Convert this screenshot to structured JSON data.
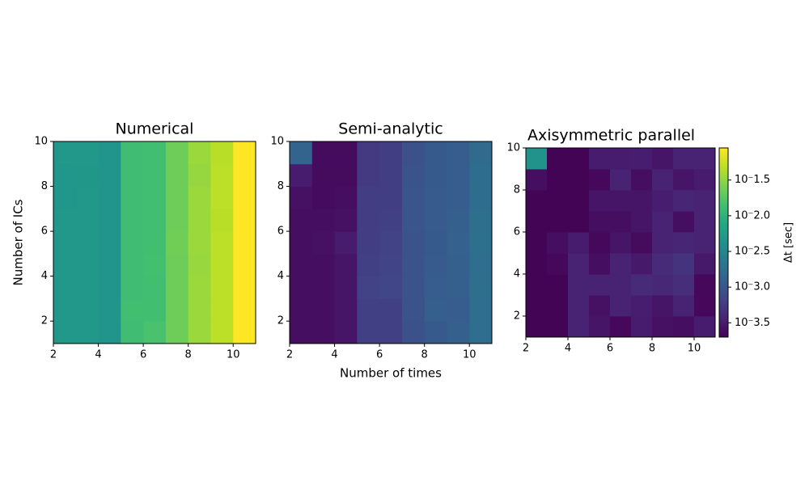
{
  "chart_data": [
    {
      "type": "heatmap",
      "title": "Numerical",
      "ylabel": "Number of ICs",
      "colormap": "viridis",
      "xlim": [
        2,
        11
      ],
      "ylim": [
        1,
        10
      ],
      "xticks": [
        2,
        4,
        6,
        8,
        10
      ],
      "yticks": [
        2,
        4,
        6,
        8,
        10
      ],
      "clim": [
        -3.7,
        -1.05
      ],
      "z": [
        [
          -2.3,
          -2.3,
          -2.33,
          -1.88,
          -1.82,
          -1.64,
          -1.45,
          -1.32,
          -1.05
        ],
        [
          -2.3,
          -2.3,
          -2.33,
          -1.86,
          -1.86,
          -1.64,
          -1.45,
          -1.32,
          -1.05
        ],
        [
          -2.3,
          -2.3,
          -2.33,
          -1.88,
          -1.86,
          -1.64,
          -1.45,
          -1.32,
          -1.05
        ],
        [
          -2.3,
          -2.3,
          -2.33,
          -1.88,
          -1.85,
          -1.64,
          -1.46,
          -1.32,
          -1.05
        ],
        [
          -2.3,
          -2.3,
          -2.33,
          -1.88,
          -1.86,
          -1.63,
          -1.45,
          -1.32,
          -1.05
        ],
        [
          -2.3,
          -2.3,
          -2.33,
          -1.88,
          -1.86,
          -1.64,
          -1.45,
          -1.33,
          -1.05
        ],
        [
          -2.32,
          -2.3,
          -2.33,
          -1.88,
          -1.86,
          -1.64,
          -1.45,
          -1.32,
          -1.05
        ],
        [
          -2.32,
          -2.31,
          -2.33,
          -1.88,
          -1.86,
          -1.64,
          -1.47,
          -1.32,
          -1.05
        ],
        [
          -2.3,
          -2.3,
          -2.33,
          -1.88,
          -1.86,
          -1.64,
          -1.45,
          -1.33,
          -1.05
        ]
      ]
    },
    {
      "type": "heatmap",
      "title": "Semi-analytic",
      "xlabel": "Number of times",
      "colormap": "viridis",
      "xlim": [
        2,
        11
      ],
      "ylim": [
        1,
        10
      ],
      "xticks": [
        2,
        4,
        6,
        8,
        10
      ],
      "yticks": [
        2,
        4,
        6,
        8,
        10
      ],
      "clim": [
        -3.7,
        -1.05
      ],
      "z": [
        [
          -3.6,
          -3.6,
          -3.55,
          -3.2,
          -3.2,
          -3.05,
          -2.95,
          -2.9,
          -2.75
        ],
        [
          -3.6,
          -3.6,
          -3.55,
          -3.2,
          -3.2,
          -3.02,
          -2.9,
          -2.92,
          -2.75
        ],
        [
          -3.6,
          -3.6,
          -3.55,
          -3.18,
          -3.15,
          -3.02,
          -2.92,
          -2.9,
          -2.74
        ],
        [
          -3.6,
          -3.6,
          -3.55,
          -3.2,
          -3.16,
          -3.02,
          -2.94,
          -2.9,
          -2.75
        ],
        [
          -3.6,
          -3.58,
          -3.5,
          -3.22,
          -3.18,
          -3.02,
          -2.95,
          -2.88,
          -2.72
        ],
        [
          -3.6,
          -3.6,
          -3.58,
          -3.22,
          -3.2,
          -3.0,
          -2.94,
          -2.9,
          -2.74
        ],
        [
          -3.58,
          -3.62,
          -3.6,
          -3.22,
          -3.22,
          -3.0,
          -2.94,
          -2.92,
          -2.76
        ],
        [
          -3.5,
          -3.62,
          -3.62,
          -3.25,
          -3.22,
          -3.02,
          -2.95,
          -2.92,
          -2.76
        ],
        [
          -2.85,
          -3.62,
          -3.62,
          -3.25,
          -3.22,
          -3.05,
          -2.95,
          -2.92,
          -2.78
        ]
      ]
    },
    {
      "type": "heatmap",
      "title": "Axisymmetric parallel",
      "colormap": "viridis",
      "xlim": [
        2,
        11
      ],
      "ylim": [
        1,
        10
      ],
      "xticks": [
        2,
        4,
        6,
        8,
        10
      ],
      "yticks": [
        2,
        4,
        6,
        8,
        10
      ],
      "clim": [
        -3.7,
        -1.05
      ],
      "z": [
        [
          -3.68,
          -3.68,
          -3.45,
          -3.55,
          -3.65,
          -3.5,
          -3.58,
          -3.6,
          -3.5
        ],
        [
          -3.68,
          -3.68,
          -3.45,
          -3.58,
          -3.45,
          -3.48,
          -3.55,
          -3.45,
          -3.65
        ],
        [
          -3.68,
          -3.68,
          -3.45,
          -3.45,
          -3.45,
          -3.38,
          -3.4,
          -3.35,
          -3.65
        ],
        [
          -3.68,
          -3.65,
          -3.45,
          -3.6,
          -3.45,
          -3.52,
          -3.38,
          -3.3,
          -3.52
        ],
        [
          -3.68,
          -3.6,
          -3.5,
          -3.65,
          -3.55,
          -3.62,
          -3.45,
          -3.42,
          -3.45
        ],
        [
          -3.68,
          -3.68,
          -3.68,
          -3.6,
          -3.6,
          -3.55,
          -3.45,
          -3.6,
          -3.45
        ],
        [
          -3.68,
          -3.68,
          -3.68,
          -3.55,
          -3.55,
          -3.55,
          -3.48,
          -3.42,
          -3.45
        ],
        [
          -3.6,
          -3.68,
          -3.68,
          -3.65,
          -3.45,
          -3.6,
          -3.45,
          -3.55,
          -3.5
        ],
        [
          -2.35,
          -3.68,
          -3.68,
          -3.5,
          -3.5,
          -3.48,
          -3.55,
          -3.45,
          -3.45
        ]
      ],
      "colorbar": {
        "label": "Δt [sec]",
        "ticks": [
          {
            "value": -1.5,
            "label": "10⁻1.5"
          },
          {
            "value": -2.0,
            "label": "10⁻2.0"
          },
          {
            "value": -2.5,
            "label": "10⁻2.5"
          },
          {
            "value": -3.0,
            "label": "10⁻3.0"
          },
          {
            "value": -3.5,
            "label": "10⁻3.5"
          }
        ]
      }
    }
  ]
}
